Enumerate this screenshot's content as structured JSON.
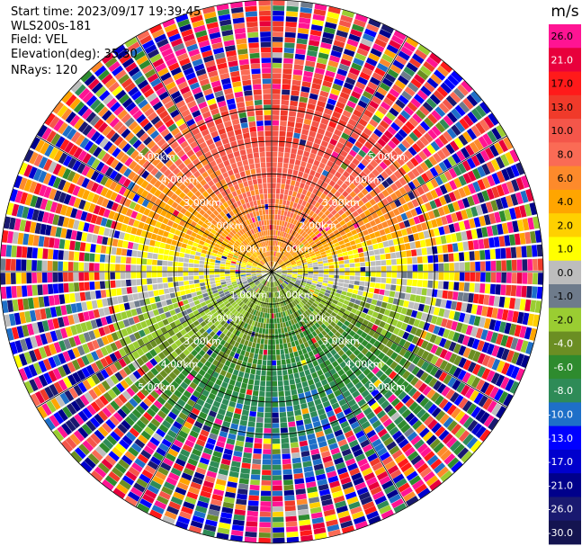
{
  "header": {
    "start_time": "Start time: 2023/09/17 19:39:45",
    "instrument": "WLS200s-181",
    "field": "Field: VEL",
    "elevation": "Elevation(deg): 35.30",
    "nrays": "NRays: 120"
  },
  "chart_data": {
    "type": "heatmap",
    "projection": "polar PPI",
    "n_rays": 120,
    "range_rings_km": [
      1.0,
      2.0,
      3.0,
      4.0,
      5.0
    ],
    "range_ring_labels": [
      "1.00km",
      "2.00km",
      "3.00km",
      "4.00km",
      "5.00km"
    ],
    "max_range_km": 5.0,
    "colorbar": {
      "unit": "m/s",
      "vmin": -30.0,
      "vmax": 30.0,
      "ticks": [
        "26.0",
        "21.0",
        "17.0",
        "13.0",
        "10.0",
        "8.0",
        "6.0",
        "4.0",
        "2.0",
        "1.0",
        "0.0",
        "-1.0",
        "-2.0",
        "-4.0",
        "-6.0",
        "-8.0",
        "-10.0",
        "-13.0",
        "-17.0",
        "-21.0",
        "-26.0",
        "-30.0"
      ],
      "colors": [
        "#ff1493",
        "#e8003c",
        "#ff1a1a",
        "#f03a2a",
        "#f4564a",
        "#fa6b55",
        "#fd8a2b",
        "#ffa500",
        "#ffd000",
        "#ffff00",
        "#bdbdbd",
        "#6e7b8b",
        "#9acd32",
        "#6b8e23",
        "#2e8b2e",
        "#2e8b57",
        "#1e6fc8",
        "#0000ff",
        "#0000cd",
        "#00008b",
        "#191970",
        "#141450"
      ]
    },
    "pattern": "near-range returns positive (yellow/orange) to the north, zero (gray) east-west, negative (green/blue) to the south; far range noisy"
  }
}
